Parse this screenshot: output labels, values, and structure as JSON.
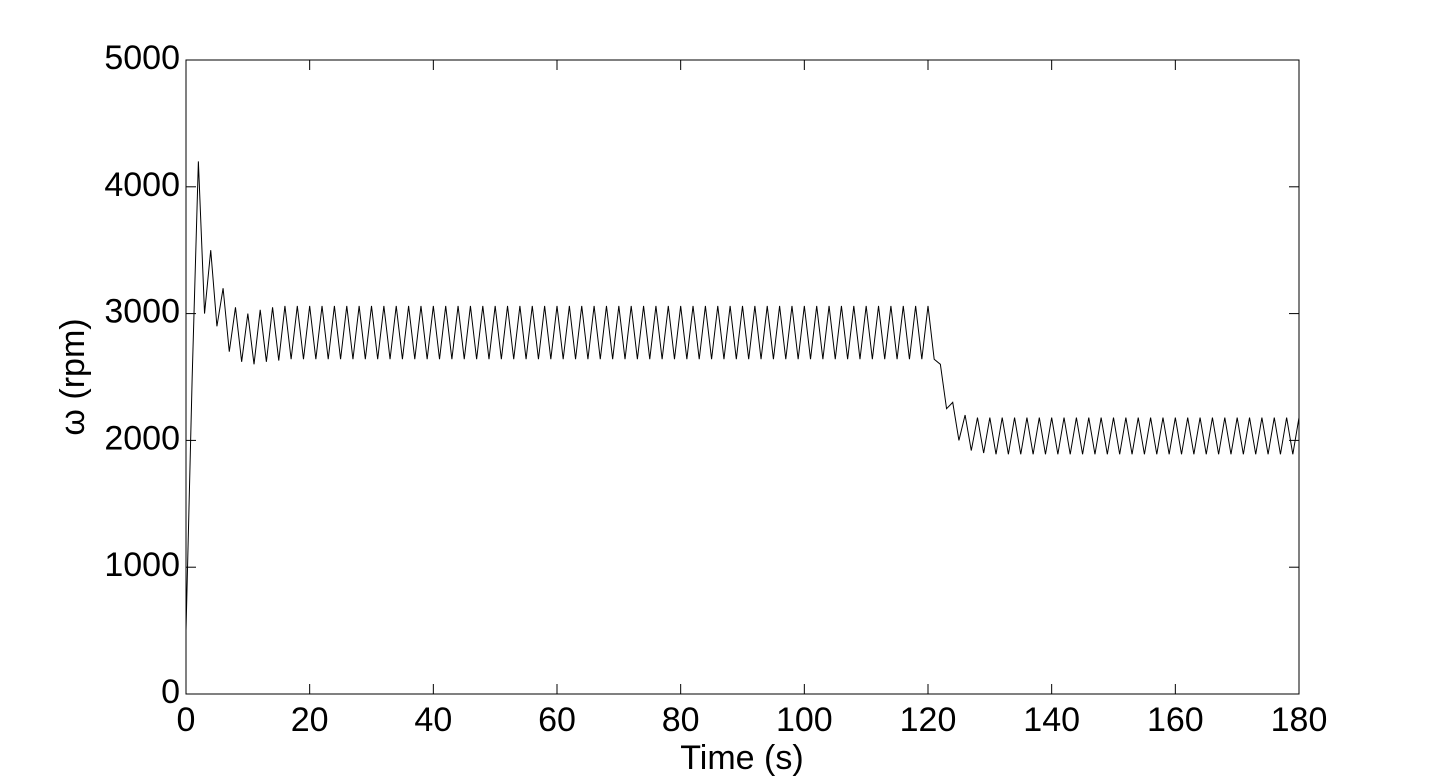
{
  "chart_data": {
    "type": "line",
    "xlabel": "Time (s)",
    "ylabel": "ω (rpm)",
    "x": [
      0,
      1,
      2,
      3,
      4,
      5,
      6,
      7,
      8,
      9,
      10,
      11,
      12,
      13,
      14,
      15,
      16,
      17,
      18,
      19,
      20,
      21,
      22,
      23,
      24,
      25,
      26,
      27,
      28,
      29,
      30,
      31,
      32,
      33,
      34,
      35,
      36,
      37,
      38,
      39,
      40,
      41,
      42,
      43,
      44,
      45,
      46,
      47,
      48,
      49,
      50,
      51,
      52,
      53,
      54,
      55,
      56,
      57,
      58,
      59,
      60,
      61,
      62,
      63,
      64,
      65,
      66,
      67,
      68,
      69,
      70,
      71,
      72,
      73,
      74,
      75,
      76,
      77,
      78,
      79,
      80,
      81,
      82,
      83,
      84,
      85,
      86,
      87,
      88,
      89,
      90,
      91,
      92,
      93,
      94,
      95,
      96,
      97,
      98,
      99,
      100,
      101,
      102,
      103,
      104,
      105,
      106,
      107,
      108,
      109,
      110,
      111,
      112,
      113,
      114,
      115,
      116,
      117,
      118,
      119,
      120,
      121,
      122,
      123,
      124,
      125,
      126,
      127,
      128,
      129,
      130,
      131,
      132,
      133,
      134,
      135,
      136,
      137,
      138,
      139,
      140,
      141,
      142,
      143,
      144,
      145,
      146,
      147,
      148,
      149,
      150,
      151,
      152,
      153,
      154,
      155,
      156,
      157,
      158,
      159,
      160,
      161,
      162,
      163,
      164,
      165,
      166,
      167,
      168,
      169,
      170,
      171,
      172,
      173,
      174,
      175,
      176,
      177,
      178,
      179,
      180
    ],
    "values": [
      500,
      2500,
      4200,
      3000,
      3500,
      2900,
      3200,
      2700,
      3050,
      2620,
      3000,
      2600,
      3030,
      2620,
      3050,
      2630,
      3060,
      2640,
      3060,
      2640,
      3060,
      2640,
      3060,
      2640,
      3060,
      2640,
      3060,
      2640,
      3060,
      2640,
      3060,
      2640,
      3060,
      2640,
      3060,
      2640,
      3060,
      2640,
      3060,
      2640,
      3060,
      2640,
      3060,
      2640,
      3060,
      2640,
      3060,
      2640,
      3060,
      2640,
      3060,
      2640,
      3060,
      2640,
      3060,
      2640,
      3060,
      2640,
      3060,
      2640,
      3060,
      2640,
      3060,
      2640,
      3060,
      2640,
      3060,
      2640,
      3060,
      2640,
      3060,
      2640,
      3060,
      2640,
      3060,
      2640,
      3060,
      2640,
      3060,
      2640,
      3060,
      2640,
      3060,
      2640,
      3060,
      2640,
      3060,
      2640,
      3060,
      2640,
      3060,
      2640,
      3060,
      2640,
      3060,
      2640,
      3060,
      2640,
      3060,
      2640,
      3060,
      2640,
      3060,
      2640,
      3060,
      2640,
      3060,
      2640,
      3060,
      2640,
      3060,
      2640,
      3060,
      2640,
      3060,
      2640,
      3060,
      2640,
      3060,
      2640,
      3060,
      2640,
      2600,
      2250,
      2300,
      2000,
      2200,
      1920,
      2180,
      1900,
      2180,
      1890,
      2180,
      1890,
      2180,
      1890,
      2180,
      1890,
      2180,
      1890,
      2180,
      1890,
      2180,
      1890,
      2180,
      1890,
      2180,
      1890,
      2180,
      1890,
      2180,
      1890,
      2180,
      1890,
      2180,
      1890,
      2180,
      1890,
      2180,
      1890,
      2180,
      1890,
      2180,
      1890,
      2180,
      1890,
      2180,
      1890,
      2180,
      1890,
      2180,
      1890,
      2180,
      1890,
      2180,
      1890,
      2180,
      1890,
      2180,
      1890,
      2180
    ],
    "color": "#000000",
    "xlim": [
      0,
      180
    ],
    "xticks": [
      0,
      20,
      40,
      60,
      80,
      100,
      120,
      140,
      160,
      180
    ],
    "ylim": [
      0,
      5000
    ],
    "yticks": [
      0,
      1000,
      2000,
      3000,
      4000,
      5000
    ]
  }
}
